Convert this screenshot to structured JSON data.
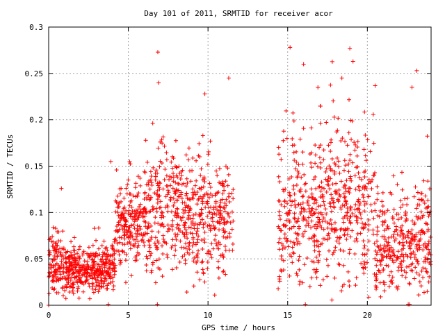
{
  "chart_data": {
    "type": "scatter",
    "title": "Day 101 of 2011, SRMTID for receiver acor",
    "xlabel": "GPS time / hours",
    "ylabel": "SRMTID / TECUs",
    "xlim": [
      0,
      24
    ],
    "ylim": [
      0,
      0.3
    ],
    "xticks": [
      0,
      5,
      10,
      15,
      20
    ],
    "yticks": [
      0,
      0.05,
      0.1,
      0.15,
      0.2,
      0.25,
      0.3
    ],
    "grid": true,
    "marker": "plus",
    "color": "#ff0000",
    "data_gap_hours": [
      11.6,
      14.4
    ],
    "segments": [
      {
        "x_start": 0.0,
        "x_end": 1.0,
        "y_mean": 0.045,
        "y_spread": 0.022,
        "density": 110
      },
      {
        "x_start": 1.0,
        "x_end": 3.0,
        "y_mean": 0.038,
        "y_spread": 0.016,
        "density": 120
      },
      {
        "x_start": 3.0,
        "x_end": 4.2,
        "y_mean": 0.042,
        "y_spread": 0.018,
        "density": 120
      },
      {
        "x_start": 4.2,
        "x_end": 6.0,
        "y_mean": 0.085,
        "y_spread": 0.028,
        "density": 110
      },
      {
        "x_start": 6.0,
        "x_end": 8.0,
        "y_mean": 0.1,
        "y_spread": 0.045,
        "density": 100
      },
      {
        "x_start": 8.0,
        "x_end": 11.6,
        "y_mean": 0.095,
        "y_spread": 0.04,
        "density": 100
      },
      {
        "x_start": 14.4,
        "x_end": 17.0,
        "y_mean": 0.095,
        "y_spread": 0.05,
        "density": 95
      },
      {
        "x_start": 17.0,
        "x_end": 20.5,
        "y_mean": 0.11,
        "y_spread": 0.055,
        "density": 95
      },
      {
        "x_start": 20.5,
        "x_end": 24.0,
        "y_mean": 0.07,
        "y_spread": 0.04,
        "density": 95
      }
    ],
    "highlighted_points": [
      {
        "x": 6.85,
        "y": 0.273
      },
      {
        "x": 6.9,
        "y": 0.24
      },
      {
        "x": 9.8,
        "y": 0.228
      },
      {
        "x": 11.3,
        "y": 0.245
      },
      {
        "x": 3.9,
        "y": 0.155
      },
      {
        "x": 0.8,
        "y": 0.126
      },
      {
        "x": 15.15,
        "y": 0.278
      },
      {
        "x": 16.0,
        "y": 0.26
      },
      {
        "x": 18.9,
        "y": 0.277
      },
      {
        "x": 19.1,
        "y": 0.263
      },
      {
        "x": 23.1,
        "y": 0.253
      },
      {
        "x": 22.8,
        "y": 0.235
      },
      {
        "x": 18.4,
        "y": 0.245
      },
      {
        "x": 0.0,
        "y": 0.0
      }
    ]
  }
}
